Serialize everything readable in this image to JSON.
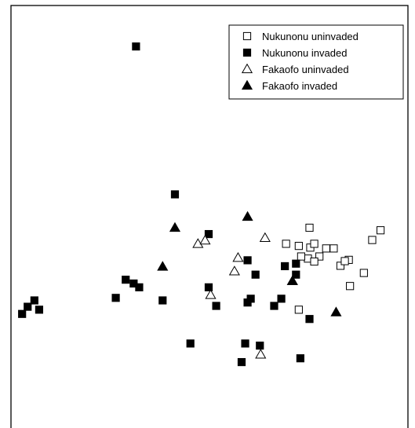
{
  "chart_data": {
    "type": "scatter",
    "title": "",
    "xlabel": "",
    "ylabel": "",
    "xlim": [
      0,
      100
    ],
    "ylim": [
      0,
      100
    ],
    "legend_position": "top-right",
    "grid": false,
    "series": [
      {
        "name": "Nukunonu uninvaded",
        "marker": "open-square",
        "color": "#000000",
        "points": [
          [
            75.2,
            47.4
          ],
          [
            69.3,
            43.6
          ],
          [
            72.5,
            43.1
          ],
          [
            75.4,
            42.7
          ],
          [
            76.4,
            43.6
          ],
          [
            79.4,
            42.5
          ],
          [
            81.3,
            42.5
          ],
          [
            77.7,
            40.6
          ],
          [
            85.1,
            39.8
          ],
          [
            74.8,
            40.1
          ],
          [
            73.1,
            40.6
          ],
          [
            76.4,
            39.4
          ],
          [
            83.0,
            38.4
          ],
          [
            84.1,
            39.5
          ],
          [
            91.0,
            44.5
          ],
          [
            93.1,
            46.8
          ],
          [
            88.9,
            36.7
          ],
          [
            85.4,
            33.6
          ],
          [
            72.5,
            28.0
          ]
        ]
      },
      {
        "name": "Nukunonu invaded",
        "marker": "filled-square",
        "color": "#000000",
        "points": [
          [
            31.5,
            90.3
          ],
          [
            41.3,
            55.3
          ],
          [
            49.8,
            45.9
          ],
          [
            59.6,
            39.7
          ],
          [
            69.0,
            38.3
          ],
          [
            71.8,
            38.9
          ],
          [
            71.8,
            36.3
          ],
          [
            61.6,
            36.3
          ],
          [
            28.9,
            35.1
          ],
          [
            30.9,
            34.2
          ],
          [
            32.3,
            33.3
          ],
          [
            26.4,
            30.8
          ],
          [
            49.8,
            33.3
          ],
          [
            38.2,
            30.2
          ],
          [
            60.4,
            30.6
          ],
          [
            68.1,
            30.6
          ],
          [
            59.6,
            29.7
          ],
          [
            66.3,
            28.9
          ],
          [
            51.7,
            28.9
          ],
          [
            7.1,
            28.0
          ],
          [
            5.9,
            30.2
          ],
          [
            4.2,
            28.7
          ],
          [
            2.8,
            27.0
          ],
          [
            75.2,
            25.8
          ],
          [
            45.2,
            20.0
          ],
          [
            59.0,
            20.0
          ],
          [
            62.7,
            19.5
          ],
          [
            58.1,
            15.6
          ],
          [
            72.9,
            16.5
          ]
        ]
      },
      {
        "name": "Fakaofo uninvaded",
        "marker": "open-triangle",
        "color": "#000000",
        "points": [
          [
            47.1,
            43.6
          ],
          [
            48.9,
            44.4
          ],
          [
            57.2,
            40.3
          ],
          [
            64.0,
            45.0
          ],
          [
            56.3,
            37.1
          ],
          [
            50.3,
            31.5
          ],
          [
            70.9,
            34.8
          ],
          [
            62.9,
            17.4
          ]
        ]
      },
      {
        "name": "Fakaofo invaded",
        "marker": "filled-triangle",
        "color": "#000000",
        "points": [
          [
            59.6,
            50.0
          ],
          [
            41.3,
            47.4
          ],
          [
            38.2,
            38.2
          ],
          [
            70.9,
            34.8
          ],
          [
            81.9,
            27.4
          ]
        ]
      }
    ]
  }
}
